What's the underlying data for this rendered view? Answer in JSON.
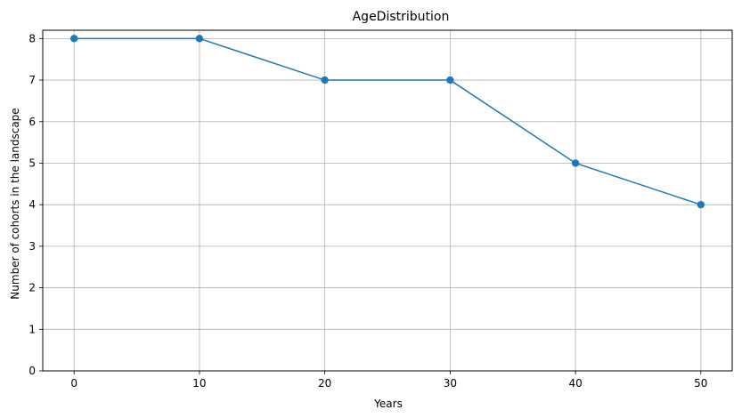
{
  "chart_data": {
    "type": "line",
    "title": "AgeDistribution",
    "xlabel": "Years",
    "ylabel": "Number of cohorts in the landscape",
    "x": [
      0,
      10,
      20,
      30,
      40,
      50
    ],
    "series": [
      {
        "values": [
          8,
          8,
          7,
          7,
          5,
          4
        ],
        "color": "#1f77b4",
        "marker": "circle"
      }
    ],
    "xticks": [
      0,
      10,
      20,
      30,
      40,
      50
    ],
    "yticks": [
      0,
      1,
      2,
      3,
      4,
      5,
      6,
      7,
      8
    ],
    "xlim": [
      -2.5,
      52.5
    ],
    "ylim": [
      0,
      8.2
    ],
    "grid": true,
    "grid_color": "#b0b0b0"
  }
}
